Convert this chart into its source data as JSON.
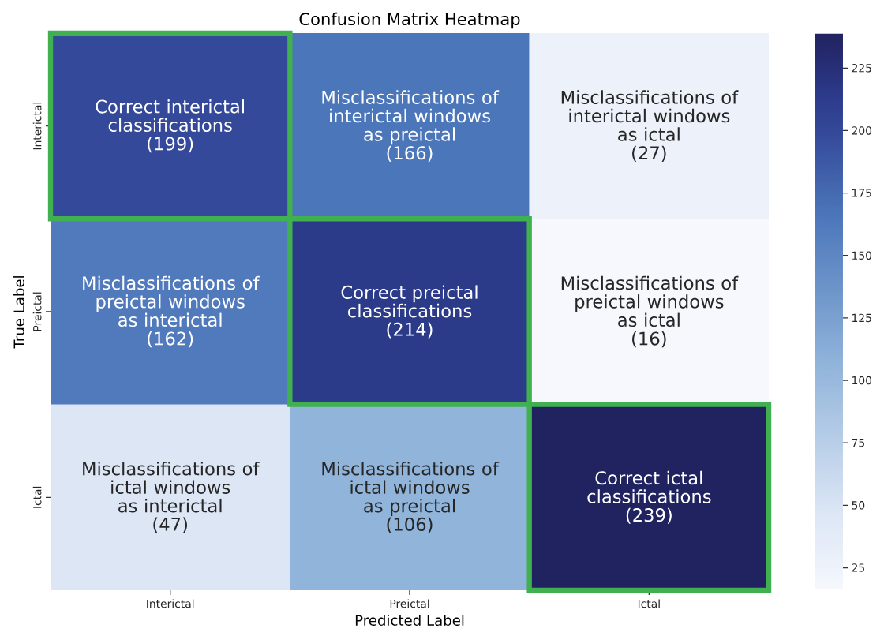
{
  "chart_data": {
    "type": "heatmap",
    "title": "Confusion Matrix Heatmap",
    "xlabel": "Predicted Label",
    "ylabel": "True Label",
    "categories": [
      "Interictal",
      "Preictal",
      "Ictal"
    ],
    "y_categories": [
      "Interictal",
      "Preictal",
      "Ictal"
    ],
    "cells": [
      [
        199,
        166,
        27
      ],
      [
        162,
        214,
        16
      ],
      [
        47,
        106,
        239
      ]
    ],
    "cell_labels": [
      [
        "Correct interictal\nclassifications\n(199)",
        "Misclassifications of\ninterictal windows\nas preictal\n(166)",
        "Misclassifications of\ninterictal windows\nas ictal\n(27)"
      ],
      [
        "Misclassifications of\npreictal windows\nas interictal\n(162)",
        "Correct preictal\nclassifications\n(214)",
        "Misclassifications of\npreictal windows\nas ictal\n(16)"
      ],
      [
        "Misclassifications of\nictal windows\nas interictal\n(47)",
        "Misclassifications of\nictal windows\nas preictal\n(106)",
        "Correct ictal\nclassifications\n(239)"
      ]
    ],
    "clim": [
      16,
      239
    ],
    "cticks": [
      25,
      50,
      75,
      100,
      125,
      150,
      175,
      200,
      225
    ]
  }
}
